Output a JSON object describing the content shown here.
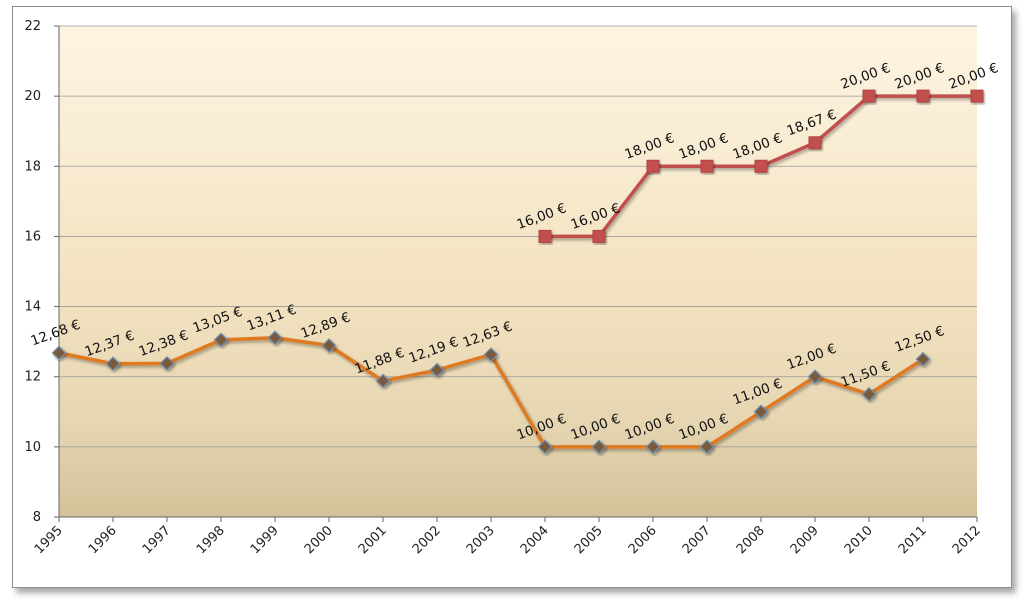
{
  "chart_data": {
    "type": "line",
    "title": "",
    "xlabel": "",
    "ylabel": "",
    "ylim": [
      8,
      22
    ],
    "yticks": [
      8,
      10,
      12,
      14,
      16,
      18,
      20,
      22
    ],
    "categories": [
      "1995",
      "1996",
      "1997",
      "1998",
      "1999",
      "2000",
      "2001",
      "2002",
      "2003",
      "2004",
      "2005",
      "2006",
      "2007",
      "2008",
      "2009",
      "2010",
      "2011",
      "2012"
    ],
    "grid": true,
    "legend": "none",
    "series": [
      {
        "color": "#e07a20",
        "marker": "diamond",
        "values": [
          12.68,
          12.37,
          12.38,
          13.05,
          13.11,
          12.89,
          11.88,
          12.19,
          12.63,
          10.0,
          10.0,
          10.0,
          10.0,
          11.0,
          12.0,
          11.5,
          12.5,
          null
        ],
        "labels": [
          "12,68 €",
          "12,37 €",
          "12,38 €",
          "13,05 €",
          "13,11 €",
          "12,89 €",
          "11,88 €",
          "12,19 €",
          "12,63 €",
          "10,00 €",
          "10,00 €",
          "10,00 €",
          "10,00 €",
          "11,00 €",
          "12,00 €",
          "11,50 €",
          "12,50 €",
          null
        ]
      },
      {
        "color": "#c0504d",
        "marker": "square",
        "values": [
          null,
          null,
          null,
          null,
          null,
          null,
          null,
          null,
          null,
          16.0,
          16.0,
          18.0,
          18.0,
          18.0,
          18.67,
          20.0,
          20.0,
          20.0
        ],
        "labels": [
          null,
          null,
          null,
          null,
          null,
          null,
          null,
          null,
          null,
          "16,00 €",
          "16,00 €",
          "18,00 €",
          "18,00 €",
          "18,00 €",
          "18,67 €",
          "20,00 €",
          "20,00 €",
          "20,00 €"
        ]
      }
    ]
  }
}
